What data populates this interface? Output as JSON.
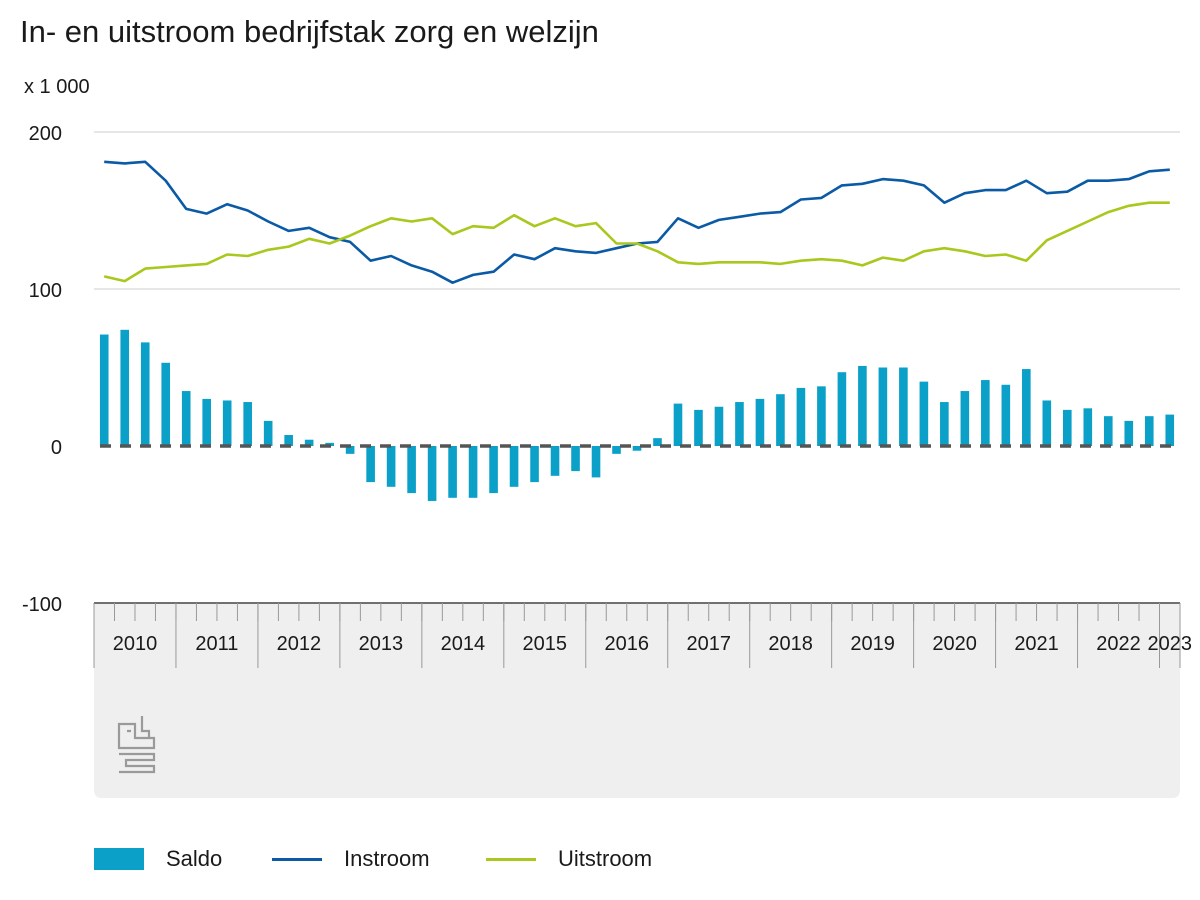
{
  "chart_data": {
    "type": "bar+line",
    "title": "In- en uitstroom bedrijfstak zorg en welzijn",
    "unit_label": "x 1 000",
    "ylim": [
      -100,
      200
    ],
    "yticks": [
      -100,
      0,
      100,
      200
    ],
    "grid": true,
    "legend_position": "bottom-left",
    "year_labels": [
      "2010",
      "2011",
      "2012",
      "2013",
      "2014",
      "2015",
      "2016",
      "2017",
      "2018",
      "2019",
      "2020",
      "2021",
      "2022",
      "2023"
    ],
    "year_start_quarter_index": [
      0,
      4,
      8,
      12,
      16,
      20,
      24,
      28,
      32,
      36,
      40,
      44,
      48,
      52
    ],
    "n_quarters": 53,
    "colors": {
      "saldo": "#0aa0c8",
      "instroom": "#0a5aa6",
      "uitstroom": "#a8c81e",
      "zero_line": "#555555",
      "grid": "#cccccc",
      "footer_bg": "#efefef",
      "logo": "#9a9a9a"
    },
    "series": [
      {
        "name": "Saldo",
        "type": "bar",
        "color": "#0aa0c8",
        "values": [
          71,
          74,
          66,
          53,
          35,
          30,
          29,
          28,
          16,
          7,
          4,
          2,
          -5,
          -23,
          -26,
          -30,
          -35,
          -33,
          -33,
          -30,
          -26,
          -23,
          -19,
          -16,
          -20,
          -5,
          -3,
          5,
          27,
          23,
          25,
          28,
          30,
          33,
          37,
          38,
          47,
          51,
          50,
          50,
          41,
          28,
          35,
          42,
          39,
          49,
          29,
          23,
          24,
          19,
          16,
          19,
          20
        ]
      },
      {
        "name": "Instroom",
        "type": "line",
        "color": "#0a5aa6",
        "values": [
          181,
          180,
          181,
          169,
          151,
          148,
          154,
          150,
          143,
          137,
          139,
          133,
          130,
          118,
          121,
          115,
          111,
          104,
          109,
          111,
          122,
          119,
          126,
          124,
          123,
          126,
          129,
          130,
          145,
          139,
          144,
          146,
          148,
          149,
          157,
          158,
          166,
          167,
          170,
          169,
          166,
          155,
          161,
          163,
          163,
          169,
          161,
          162,
          169,
          169,
          170,
          175,
          176
        ]
      },
      {
        "name": "Uitstroom",
        "type": "line",
        "color": "#a8c81e",
        "values": [
          108,
          105,
          113,
          114,
          115,
          116,
          122,
          121,
          125,
          127,
          132,
          129,
          134,
          140,
          145,
          143,
          145,
          135,
          140,
          139,
          147,
          140,
          145,
          140,
          142,
          129,
          129,
          124,
          117,
          116,
          117,
          117,
          117,
          116,
          118,
          119,
          118,
          115,
          120,
          118,
          124,
          126,
          124,
          121,
          122,
          118,
          131,
          137,
          143,
          149,
          153,
          155,
          155
        ]
      }
    ],
    "footer_logo": "cbs"
  }
}
